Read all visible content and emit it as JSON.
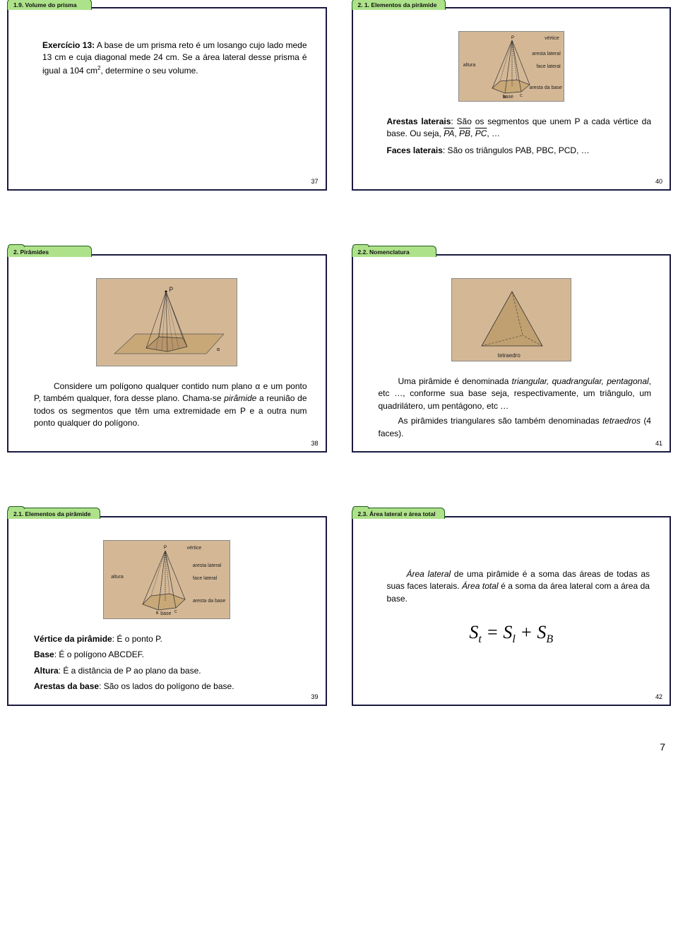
{
  "slides": {
    "s37": {
      "tab": "1.9. Volume do prisma",
      "text": "<b>Exercício 13:</b> A base de um prisma reto é um losango cujo lado mede 13 cm e cuja diagonal mede 24 cm. Se a área lateral desse prisma é igual a 104 cm<sup>2</sup>, determine o seu volume.",
      "num": "37"
    },
    "s40": {
      "tab": "2. 1. Elementos da pirâmide",
      "text1": "<b>Arestas laterais</b>: São os segmentos que unem P a cada vértice da base. Ou seja, <span class='overline'>PA</span>, <span class='overline'>PB</span>, <span class='overline'>PC</span>, …",
      "text2": "<b>Faces laterais</b>: São os triângulos PAB, PBC, PCD, …",
      "num": "40",
      "fig_labels": {
        "vertice": "vértice",
        "altura": "altura",
        "aresta_lat": "aresta lateral",
        "face_lat": "face lateral",
        "aresta_base": "aresta da base",
        "base": "base"
      }
    },
    "s38": {
      "tab": "2. Pirâmides",
      "text": "Considere um polígono qualquer contido num plano α e um ponto P, também qualquer, fora desse plano. Chama-se <span class='italic'>pirâmide</span> a reunião de todos os segmentos que têm uma extremidade em P e a outra num ponto qualquer do polígono.",
      "num": "38",
      "p_label": "P"
    },
    "s41": {
      "tab": "2.2. Nomenclatura",
      "text1": "Uma pirâmide é denominada <span class='italic'>triangular, quadrangular, pentagonal</span>, etc …, conforme sua base seja, respectivamente, um triângulo, um quadrilátero, um pentágono, etc …",
      "text2": "As pirâmides triangulares são também denominadas <span class='italic'>tetraedros</span> (4 faces).",
      "num": "41",
      "fig_label": "tetraedro"
    },
    "s39": {
      "tab": "2.1. Elementos da pirâmide",
      "l1": "<b>Vértice da pirâmide</b>: É o ponto P.",
      "l2": "<b>Base</b>: É o polígono ABCDEF.",
      "l3": "<b>Altura</b>: É a distância de P ao plano da base.",
      "l4": "<b>Arestas da base</b>: São os lados do polígono de base.",
      "num": "39"
    },
    "s42": {
      "tab": "2.3. Área lateral e área total",
      "text": "<span class='italic'>Área lateral</span> de uma pirâmide é a soma das áreas de todas as suas faces laterais. <span class='italic'>Área total</span> é a soma da área lateral com a área da base.",
      "formula_html": "S<span class='sub'>t</span> = S<span class='sub'>l</span> + S<span class='sub'>B</span>",
      "num": "42"
    }
  },
  "page_num": "7",
  "colors": {
    "tab_bg": "#aee28a",
    "tab_border": "#1a5b1a",
    "slide_border": "#1a1a40",
    "fig_bg": "#d4b896"
  }
}
